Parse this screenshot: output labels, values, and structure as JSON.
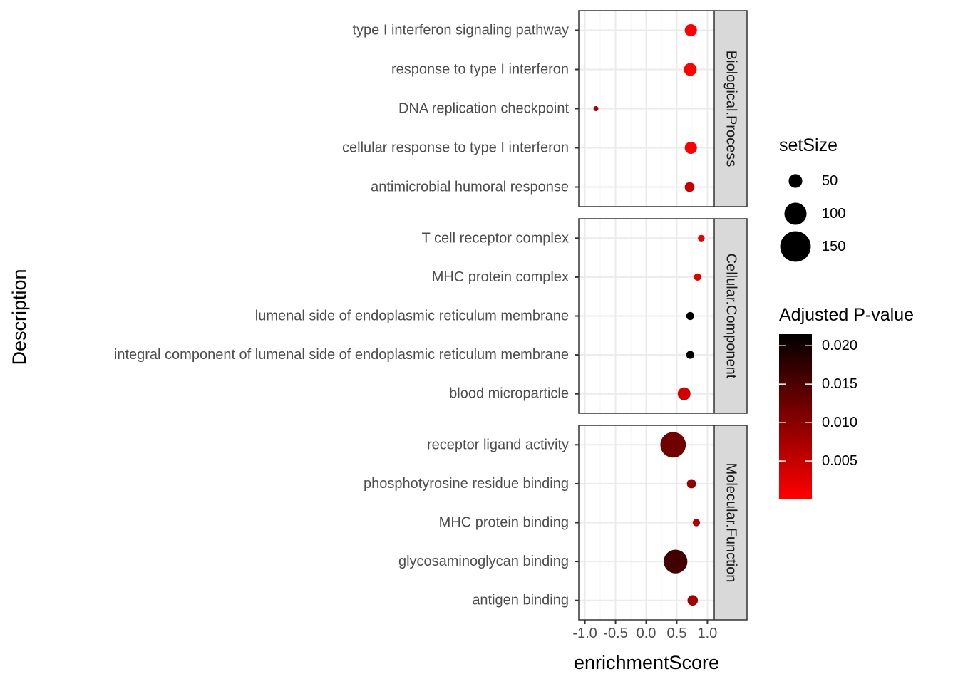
{
  "chart_data": {
    "type": "scatter",
    "xlabel": "enrichmentScore",
    "ylabel": "Description",
    "xlim": [
      -1.1,
      1.1
    ],
    "x_ticks": [
      -1.0,
      -0.5,
      0.0,
      0.5,
      1.0
    ],
    "x_tick_labels": [
      "-1.0",
      "-0.5",
      "0.0",
      "0.5",
      "1.0"
    ],
    "grid": true,
    "facets": [
      {
        "label": "Biological.Process",
        "terms": [
          {
            "description": "type I interferon signaling pathway",
            "enrichmentScore": 0.73,
            "setSize": 70,
            "p_adjust": 0.0002
          },
          {
            "description": "response to type I interferon",
            "enrichmentScore": 0.72,
            "setSize": 75,
            "p_adjust": 0.0002
          },
          {
            "description": "DNA replication checkpoint",
            "enrichmentScore": -0.82,
            "setSize": 10,
            "p_adjust": 0.008
          },
          {
            "description": "cellular response to type I interferon",
            "enrichmentScore": 0.73,
            "setSize": 70,
            "p_adjust": 0.0002
          },
          {
            "description": "antimicrobial humoral response",
            "enrichmentScore": 0.71,
            "setSize": 50,
            "p_adjust": 0.005
          }
        ]
      },
      {
        "label": "Cellular.Component",
        "terms": [
          {
            "description": "T cell receptor complex",
            "enrichmentScore": 0.9,
            "setSize": 25,
            "p_adjust": 0.002
          },
          {
            "description": "MHC protein complex",
            "enrichmentScore": 0.84,
            "setSize": 30,
            "p_adjust": 0.003
          },
          {
            "description": "lumenal side of endoplasmic reticulum membrane",
            "enrichmentScore": 0.72,
            "setSize": 35,
            "p_adjust": 0.022
          },
          {
            "description": "integral component of lumenal side of endoplasmic reticulum membrane",
            "enrichmentScore": 0.72,
            "setSize": 35,
            "p_adjust": 0.022
          },
          {
            "description": "blood microparticle",
            "enrichmentScore": 0.62,
            "setSize": 75,
            "p_adjust": 0.004
          }
        ]
      },
      {
        "label": "Molecular.Function",
        "terms": [
          {
            "description": "receptor ligand activity",
            "enrichmentScore": 0.44,
            "setSize": 180,
            "p_adjust": 0.012
          },
          {
            "description": "phosphotyrosine residue binding",
            "enrichmentScore": 0.74,
            "setSize": 45,
            "p_adjust": 0.009
          },
          {
            "description": "MHC protein binding",
            "enrichmentScore": 0.82,
            "setSize": 30,
            "p_adjust": 0.007
          },
          {
            "description": "glycosaminoglycan binding",
            "enrichmentScore": 0.48,
            "setSize": 165,
            "p_adjust": 0.016
          },
          {
            "description": "antigen binding",
            "enrichmentScore": 0.76,
            "setSize": 55,
            "p_adjust": 0.008
          }
        ]
      }
    ],
    "legend_size": {
      "title": "setSize",
      "breaks": [
        50,
        100,
        150
      ],
      "labels": [
        "50",
        "100",
        "150"
      ]
    },
    "legend_color": {
      "title": "Adjusted P-value",
      "low_color": "#FF0000",
      "high_color": "#000000",
      "range": [
        0.0001,
        0.0215
      ],
      "breaks": [
        0.005,
        0.01,
        0.015,
        0.02
      ],
      "labels": [
        "0.005",
        "0.010",
        "0.015",
        "0.020"
      ]
    }
  },
  "colors": {
    "panel_border": "#333333",
    "grid_major": "#EBEBEB",
    "grid_minor": "#F5F5F5",
    "strip_fill": "#D9D9D9",
    "text_dark": "#000000",
    "text_axis": "#4D4D4D"
  }
}
